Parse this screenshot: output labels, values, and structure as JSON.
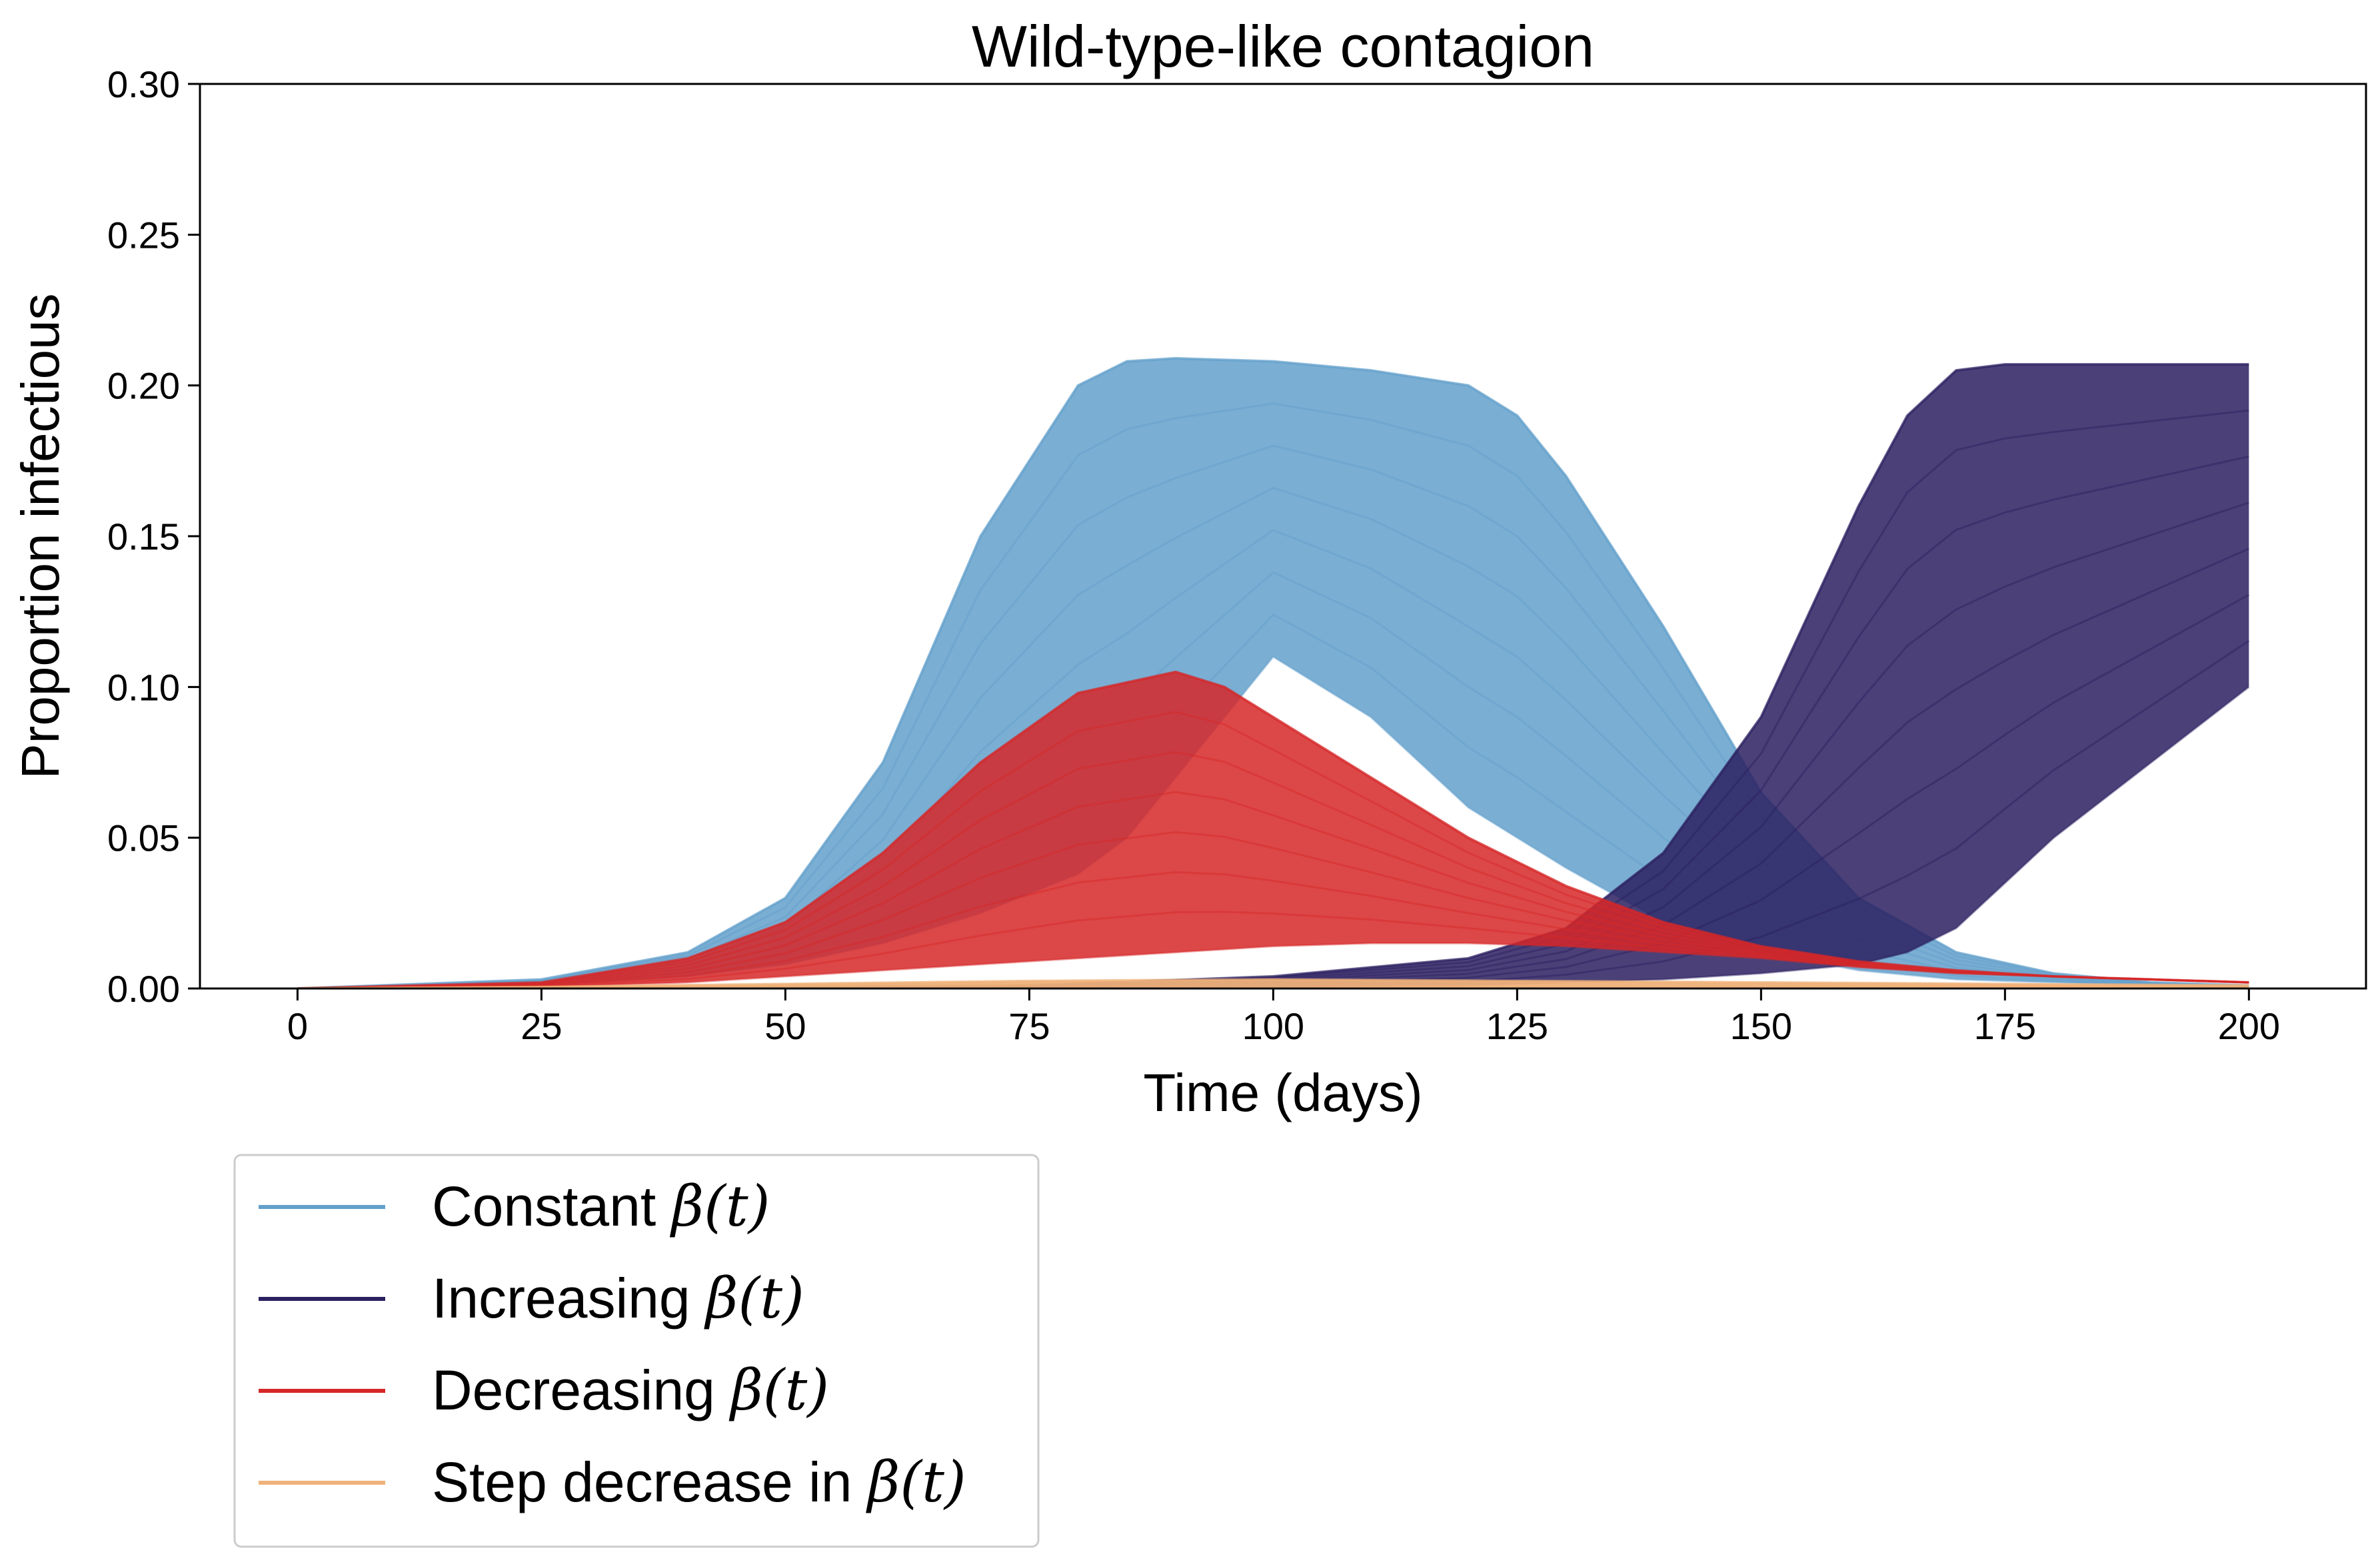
{
  "chart_data": {
    "type": "line",
    "title": "Wild-type-like contagion",
    "xlabel": "Time (days)",
    "ylabel": "Proportion infectious",
    "xlim": [
      -10,
      212
    ],
    "ylim": [
      0,
      0.3
    ],
    "xticks": [
      0,
      25,
      50,
      75,
      100,
      125,
      150,
      175,
      200
    ],
    "yticks": [
      0.0,
      0.05,
      0.1,
      0.15,
      0.2,
      0.25,
      0.3
    ],
    "xtick_labels": [
      "0",
      "25",
      "50",
      "75",
      "100",
      "125",
      "150",
      "175",
      "200"
    ],
    "ytick_labels": [
      "0.00",
      "0.05",
      "0.10",
      "0.15",
      "0.20",
      "0.25",
      "0.30"
    ],
    "grid": false,
    "legend_position": "below-left, outside plot",
    "series": [
      {
        "name": "Constant β(t)",
        "label_prefix": "Constant ",
        "color": "#63a0cb",
        "description": "Ensemble of trajectories peaking near 0.21 between day 82 and day 140",
        "envelope": {
          "x": [
            0,
            25,
            40,
            50,
            60,
            70,
            80,
            85,
            90,
            100,
            110,
            120,
            125,
            130,
            140,
            150,
            160,
            170,
            180,
            190,
            200
          ],
          "upper": [
            0.0,
            0.003,
            0.012,
            0.03,
            0.075,
            0.15,
            0.2,
            0.208,
            0.209,
            0.208,
            0.205,
            0.2,
            0.19,
            0.17,
            0.12,
            0.065,
            0.03,
            0.012,
            0.005,
            0.002,
            0.001
          ],
          "lower": [
            0.0,
            0.001,
            0.004,
            0.008,
            0.015,
            0.025,
            0.038,
            0.05,
            0.07,
            0.11,
            0.09,
            0.06,
            0.05,
            0.04,
            0.022,
            0.012,
            0.006,
            0.003,
            0.002,
            0.001,
            0.0
          ]
        }
      },
      {
        "name": "Increasing β(t)",
        "label_prefix": "Increasing ",
        "color": "#2b2060",
        "description": "Ensemble of trajectories rising late and plateauing near 0.207 until day 200",
        "envelope": {
          "x": [
            0,
            25,
            50,
            75,
            100,
            120,
            130,
            140,
            150,
            160,
            165,
            170,
            175,
            180,
            190,
            200
          ],
          "upper": [
            0.0,
            0.0,
            0.0005,
            0.001,
            0.004,
            0.01,
            0.02,
            0.045,
            0.09,
            0.16,
            0.19,
            0.205,
            0.207,
            0.207,
            0.207,
            0.207
          ],
          "lower": [
            0.0,
            0.0,
            0.0,
            0.0,
            0.0005,
            0.001,
            0.002,
            0.003,
            0.005,
            0.008,
            0.012,
            0.02,
            0.035,
            0.05,
            0.075,
            0.1
          ]
        }
      },
      {
        "name": "Decreasing β(t)",
        "label_prefix": "Decreasing ",
        "color": "#d62728",
        "description": "Ensemble of trajectories peaking near 0.10 around day 90 then decaying",
        "envelope": {
          "x": [
            0,
            25,
            40,
            50,
            60,
            70,
            80,
            90,
            95,
            100,
            110,
            120,
            130,
            140,
            150,
            160,
            170,
            180,
            190,
            200
          ],
          "upper": [
            0.0,
            0.002,
            0.01,
            0.022,
            0.045,
            0.075,
            0.098,
            0.105,
            0.1,
            0.09,
            0.07,
            0.05,
            0.034,
            0.022,
            0.014,
            0.009,
            0.006,
            0.004,
            0.003,
            0.002
          ],
          "lower": [
            0.0,
            0.0005,
            0.002,
            0.004,
            0.006,
            0.008,
            0.01,
            0.012,
            0.013,
            0.014,
            0.015,
            0.015,
            0.014,
            0.012,
            0.01,
            0.007,
            0.005,
            0.004,
            0.003,
            0.002
          ]
        }
      },
      {
        "name": "Step decrease in β(t)",
        "label_prefix": "Step decrease in ",
        "color": "#f0b27a",
        "description": "Ensemble of trajectories staying near zero",
        "envelope": {
          "x": [
            0,
            25,
            50,
            75,
            100,
            125,
            150,
            175,
            200
          ],
          "upper": [
            0.0,
            0.0005,
            0.0015,
            0.0025,
            0.003,
            0.0025,
            0.002,
            0.0015,
            0.001
          ],
          "lower": [
            0.0,
            0.0,
            0.0,
            0.0,
            0.0,
            0.0,
            0.0,
            0.0,
            0.0
          ]
        }
      }
    ],
    "legend_math_label": "β(t)"
  }
}
